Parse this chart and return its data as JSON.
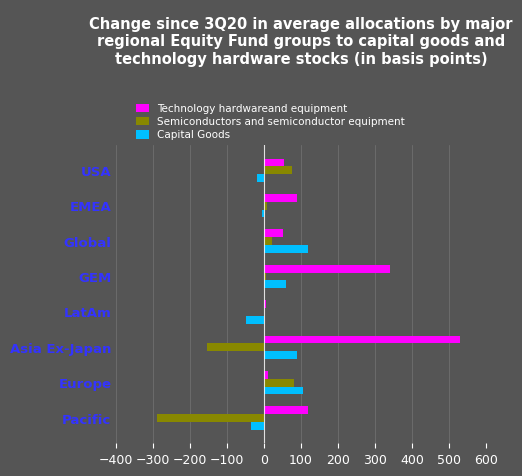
{
  "title": "Change since 3Q20 in average allocations by major\nregional Equity Fund groups to capital goods and\ntechnology hardware stocks (in basis points)",
  "categories": [
    "Pacific",
    "Europe",
    "Asia Ex-Japan",
    "LatAm",
    "GEM",
    "Global",
    "EMEA",
    "USA"
  ],
  "tech_hardware": [
    120,
    10,
    530,
    5,
    340,
    50,
    90,
    55
  ],
  "semiconductors": [
    -290,
    80,
    -155,
    0,
    5,
    20,
    8,
    75
  ],
  "capital_goods": [
    -35,
    105,
    90,
    -50,
    60,
    120,
    -5,
    -20
  ],
  "colors": {
    "tech_hardware": "#FF00FF",
    "semiconductors": "#888800",
    "capital_goods": "#00BFFF"
  },
  "legend_labels": [
    "Technology hardwareand equipment",
    "Semiconductors and semiconductor equipment",
    "Capital Goods"
  ],
  "xlim": [
    -400,
    600
  ],
  "xticks": [
    -400,
    -300,
    -200,
    -100,
    0,
    100,
    200,
    300,
    400,
    500,
    600
  ],
  "background_color": "#555555",
  "text_color": "#ffffff",
  "label_color": "#3333FF",
  "title_fontsize": 10.5,
  "tick_fontsize": 9
}
